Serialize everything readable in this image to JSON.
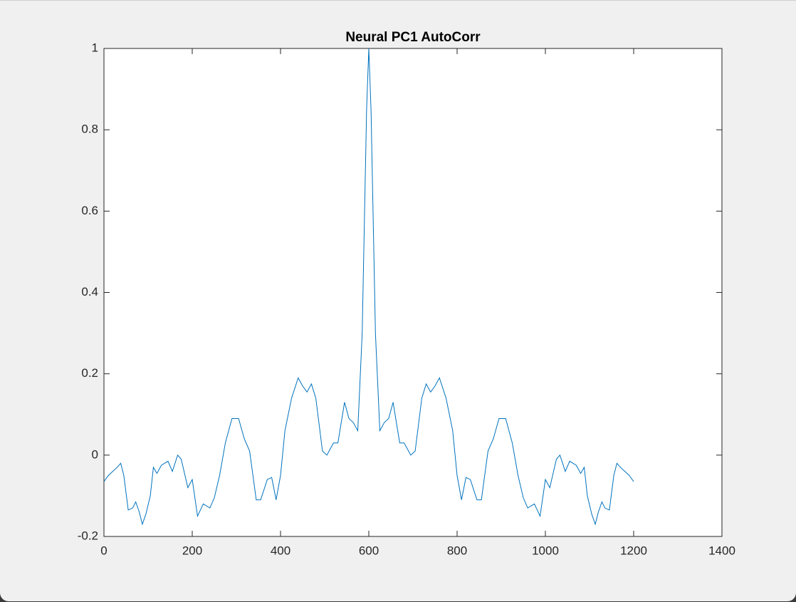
{
  "chart_data": {
    "type": "line",
    "title": "Neural PC1 AutoCorr",
    "xlim": [
      0,
      1400
    ],
    "xticks": [
      0,
      200,
      400,
      600,
      800,
      1000,
      1200,
      1400
    ],
    "ylim": [
      -0.2,
      1
    ],
    "yticks": [
      -0.2,
      0,
      0.2,
      0.4,
      0.6,
      0.8,
      1
    ],
    "x": [
      0,
      10,
      20,
      30,
      38,
      45,
      55,
      65,
      72,
      80,
      87,
      95,
      105,
      112,
      120,
      130,
      145,
      155,
      167,
      175,
      190,
      200,
      212,
      225,
      240,
      250,
      262,
      275,
      290,
      305,
      318,
      330,
      345,
      355,
      370,
      380,
      390,
      400,
      410,
      425,
      440,
      450,
      460,
      470,
      480,
      495,
      505,
      520,
      530,
      545,
      555,
      565,
      575,
      585,
      595,
      600,
      605,
      615,
      625,
      635,
      645,
      655,
      670,
      680,
      695,
      705,
      720,
      730,
      740,
      750,
      760,
      775,
      790,
      800,
      810,
      820,
      830,
      845,
      855,
      870,
      882,
      895,
      910,
      925,
      938,
      950,
      960,
      975,
      988,
      1000,
      1010,
      1025,
      1033,
      1045,
      1055,
      1070,
      1080,
      1088,
      1095,
      1105,
      1113,
      1120,
      1128,
      1135,
      1145,
      1155,
      1162,
      1170,
      1180,
      1190,
      1200
    ],
    "series": [
      {
        "color": "#0072bd",
        "values": [
          -0.065,
          -0.05,
          -0.04,
          -0.03,
          -0.02,
          -0.05,
          -0.135,
          -0.13,
          -0.115,
          -0.14,
          -0.17,
          -0.145,
          -0.1,
          -0.03,
          -0.045,
          -0.025,
          -0.015,
          -0.04,
          0,
          -0.01,
          -0.08,
          -0.06,
          -0.15,
          -0.12,
          -0.13,
          -0.105,
          -0.05,
          0.03,
          0.09,
          0.09,
          0.04,
          0.01,
          -0.11,
          -0.11,
          -0.06,
          -0.055,
          -0.11,
          -0.05,
          0.06,
          0.14,
          0.19,
          0.17,
          0.155,
          0.175,
          0.14,
          0.01,
          0,
          0.03,
          0.03,
          0.13,
          0.09,
          0.08,
          0.06,
          0.3,
          0.85,
          1,
          0.85,
          0.3,
          0.06,
          0.08,
          0.09,
          0.13,
          0.03,
          0.03,
          0,
          0.01,
          0.14,
          0.175,
          0.155,
          0.17,
          0.19,
          0.14,
          0.06,
          -0.05,
          -0.11,
          -0.055,
          -0.06,
          -0.11,
          -0.11,
          0.01,
          0.04,
          0.09,
          0.09,
          0.03,
          -0.05,
          -0.105,
          -0.13,
          -0.12,
          -0.15,
          -0.06,
          -0.08,
          -0.01,
          0,
          -0.04,
          -0.015,
          -0.025,
          -0.045,
          -0.03,
          -0.1,
          -0.145,
          -0.17,
          -0.14,
          -0.115,
          -0.13,
          -0.135,
          -0.05,
          -0.02,
          -0.03,
          -0.04,
          -0.05,
          -0.065
        ]
      }
    ]
  }
}
